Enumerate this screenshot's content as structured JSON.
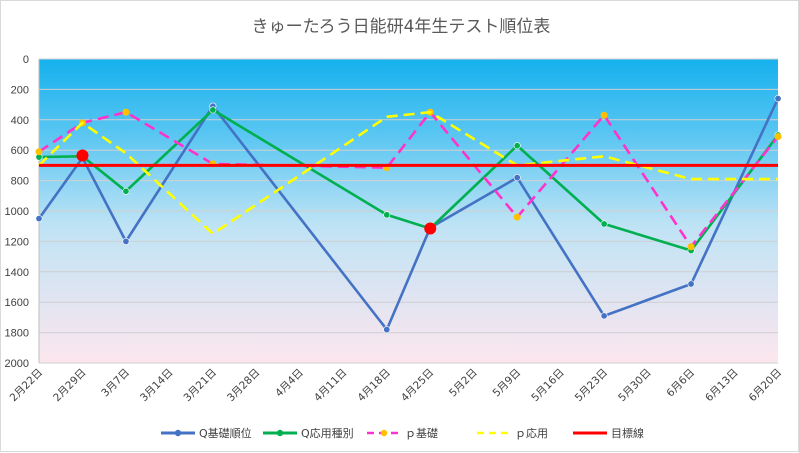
{
  "chart_data": {
    "type": "line",
    "title": "きゅーたろう日能研4年生テスト順位表",
    "categories": [
      "2月22日",
      "2月29日",
      "3月7日",
      "3月14日",
      "3月21日",
      "3月28日",
      "4月4日",
      "4月11日",
      "4月18日",
      "4月25日",
      "5月2日",
      "5月9日",
      "5月16日",
      "5月23日",
      "5月30日",
      "6月6日",
      "6月13日",
      "6月20日"
    ],
    "y_axis": {
      "min": 0,
      "max": 2000,
      "step": 200,
      "reversed": true,
      "gridlines": true
    },
    "legend_position": "bottom",
    "series": [
      {
        "name": "Q基礎順位",
        "color": "#4472c4",
        "style": "solid",
        "marker": "circle",
        "points": [
          [
            0,
            1050
          ],
          [
            1,
            650
          ],
          [
            2,
            1200
          ],
          [
            4,
            310
          ],
          [
            8,
            1780
          ],
          [
            9,
            1110
          ],
          [
            11,
            780
          ],
          [
            13,
            1690
          ],
          [
            15,
            1480
          ],
          [
            17,
            260
          ]
        ]
      },
      {
        "name": "Q応用種別",
        "color": "#00b050",
        "style": "solid",
        "marker": "circle",
        "points": [
          [
            0,
            645
          ],
          [
            1,
            640
          ],
          [
            2,
            870
          ],
          [
            4,
            335
          ],
          [
            8,
            1025
          ],
          [
            9,
            1115
          ],
          [
            11,
            570
          ],
          [
            13,
            1085
          ],
          [
            15,
            1260
          ],
          [
            17,
            500
          ]
        ]
      },
      {
        "name": "ｐ基礎",
        "color": "#ff33cc",
        "style": "dashed",
        "marker": "circle-gold",
        "points": [
          [
            0,
            610
          ],
          [
            1,
            420
          ],
          [
            2,
            350
          ],
          [
            4,
            690
          ],
          [
            8,
            715
          ],
          [
            9,
            350
          ],
          [
            11,
            1040
          ],
          [
            13,
            370
          ],
          [
            15,
            1235
          ],
          [
            17,
            510
          ]
        ]
      },
      {
        "name": "ｐ応用",
        "color": "#ffff00",
        "style": "dashed",
        "marker": "none",
        "points": [
          [
            0,
            700
          ],
          [
            1,
            420
          ],
          [
            2,
            620
          ],
          [
            4,
            1150
          ],
          [
            8,
            380
          ],
          [
            9,
            350
          ],
          [
            11,
            700
          ],
          [
            13,
            640
          ],
          [
            15,
            790
          ],
          [
            17,
            790
          ]
        ]
      },
      {
        "name": "目標線",
        "color": "#ff0000",
        "style": "solid",
        "marker": "none",
        "points": [
          [
            0,
            700
          ],
          [
            17,
            700
          ]
        ]
      }
    ],
    "highlight_points": [
      [
        1,
        635
      ],
      [
        9,
        1115
      ]
    ]
  }
}
